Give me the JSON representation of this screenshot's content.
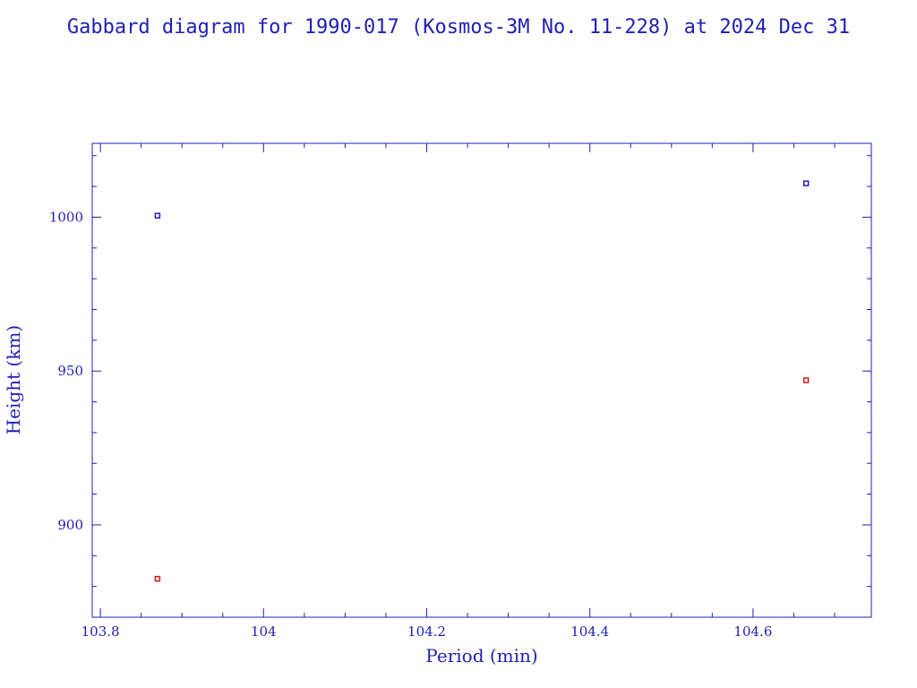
{
  "chart_data": {
    "type": "scatter",
    "title": "Gabbard diagram for 1990-017 (Kosmos-3M No. 11-228) at 2024 Dec 31",
    "xlabel": "Period (min)",
    "ylabel": "Height (km)",
    "xlim": [
      103.79,
      104.745
    ],
    "ylim": [
      870,
      1024
    ],
    "x_ticks": [
      103.8,
      104,
      104.2,
      104.4,
      104.6
    ],
    "x_tick_labels": [
      "103.8",
      "104",
      "104.2",
      "104.4",
      "104.6"
    ],
    "y_ticks": [
      900,
      950,
      1000
    ],
    "y_tick_labels": [
      "900",
      "950",
      "1000"
    ],
    "x_minor_step": 0.05,
    "y_minor_step": 10,
    "grid": false,
    "colors": {
      "axis": "#1f1fb4",
      "apogee": "#1010c8",
      "perigee": "#d01010"
    },
    "series": [
      {
        "role": "apogee",
        "color": "#1010c8",
        "points": [
          {
            "x": 103.87,
            "y": 1000.5
          },
          {
            "x": 104.665,
            "y": 1011
          }
        ]
      },
      {
        "role": "perigee",
        "color": "#d01010",
        "points": [
          {
            "x": 103.87,
            "y": 882.5
          },
          {
            "x": 104.665,
            "y": 947
          }
        ]
      }
    ]
  }
}
